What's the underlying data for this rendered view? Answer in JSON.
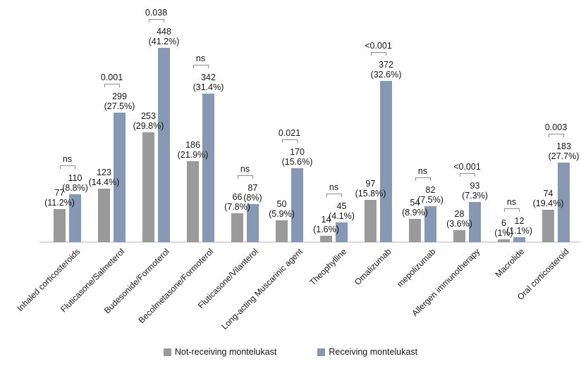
{
  "chart_data": {
    "type": "bar",
    "title": "",
    "xlabel": "",
    "ylabel": "",
    "yaxis_visible": false,
    "grid": false,
    "legend_position": "bottom",
    "ylim": [
      0,
      460
    ],
    "categories": [
      "Inhaled corticosteroids",
      "Fluticasone/Salmeterol",
      "Budesonide/Formoterol",
      "Becolmetasone/Formoterol",
      "Fluticasone/Vilanterol",
      "Long-acting Muscarinic agent",
      "Theophylline",
      "Omalizumab",
      "mepolizumab",
      "Allergen immunotherapy",
      "Macrolide",
      "Oral corticosteroid"
    ],
    "series": [
      {
        "name": "Not-receiving montelukast",
        "color": "#9a9a9a",
        "values": [
          77,
          123,
          253,
          186,
          66,
          50,
          14,
          97,
          54,
          28,
          6,
          74
        ],
        "pct_labels": [
          "(11.2%)",
          "(14.4%)",
          "(29.8%)",
          "(21.9%)",
          "(7.8%)",
          "(5.9%)",
          "(1.6%)",
          "(15.8%)",
          "(8.9%)",
          "(3.6%)",
          "(1%)",
          "(19.4%)"
        ]
      },
      {
        "name": "Receiving montelukast",
        "color": "#8698b4",
        "values": [
          110,
          299,
          448,
          342,
          87,
          170,
          45,
          372,
          82,
          93,
          12,
          183
        ],
        "pct_labels": [
          "(8.8%)",
          "(27.5%)",
          "(41.2%)",
          "(31.4%)",
          "(8%)",
          "(15.6%)",
          "(4.1%)",
          "(32.6%)",
          "(7.5%)",
          "(7.3%)",
          "(1.1%)",
          "(27.7%)"
        ]
      }
    ],
    "p_values": [
      "ns",
      "0.001",
      "0.038",
      "ns",
      "ns",
      "0.021",
      "ns",
      "<0.001",
      "ns",
      "<0.001",
      "ns",
      "0.003"
    ]
  }
}
